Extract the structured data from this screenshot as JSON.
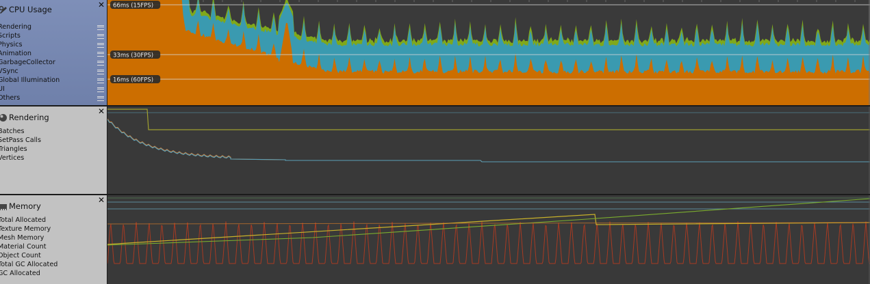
{
  "cpu": {
    "title": "CPU Usage",
    "categories": [
      "Rendering",
      "Scripts",
      "Physics",
      "Animation",
      "GarbageCollector",
      "VSync",
      "Global Illumination",
      "UI",
      "Others"
    ],
    "labels": [
      "66ms (15FPS)",
      "33ms (30FPS)",
      "16ms (60FPS)"
    ],
    "colors": {
      "rendering": "#cc6e00",
      "scripts": "#3a9ab0",
      "physics": "#80a81a",
      "bg": "#3a3a3a",
      "line": "#d8d8d8"
    }
  },
  "rendering": {
    "title": "Rendering",
    "items": [
      "Batches",
      "SetPass Calls",
      "Triangles",
      "Vertices"
    ]
  },
  "memory": {
    "title": "Memory",
    "items": [
      "Total Allocated",
      "Texture Memory",
      "Mesh Memory",
      "Material Count",
      "Object Count",
      "Total GC Allocated",
      "GC Allocated"
    ]
  },
  "icons": {
    "cpu": "cpu-usage-icon",
    "rendering": "rendering-icon",
    "memory": "memory-icon",
    "close": "close-icon"
  },
  "close_glyph": "✕"
}
